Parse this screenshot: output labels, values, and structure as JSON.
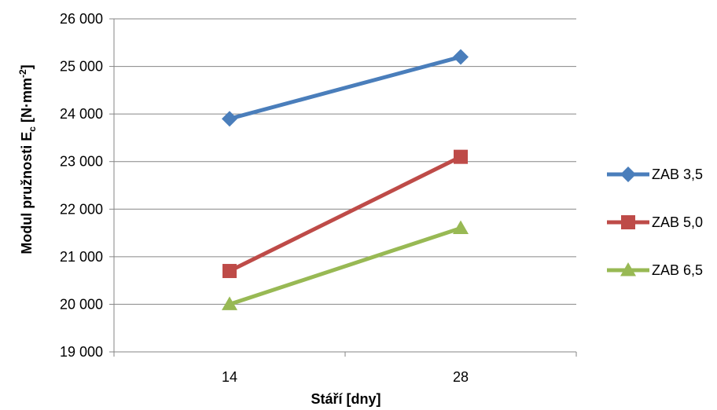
{
  "chart_data": {
    "type": "line",
    "categories": [
      "14",
      "28"
    ],
    "series": [
      {
        "name": "ZAB 3,5",
        "values": [
          23900,
          25200
        ],
        "color": "#4a7ebb",
        "marker": "diamond"
      },
      {
        "name": "ZAB 5,0",
        "values": [
          20700,
          23100
        ],
        "color": "#be4b48",
        "marker": "square"
      },
      {
        "name": "ZAB 6,5",
        "values": [
          20000,
          21600
        ],
        "color": "#98b954",
        "marker": "triangle"
      }
    ],
    "xlabel": "Stáří [dny]",
    "ylabel": {
      "main": "Modul pružnosti E",
      "sub": "c",
      "unit_pre": " [N·mm",
      "sup": "-2",
      "unit_post": "]"
    },
    "ylim": [
      19000,
      26000
    ],
    "yticks": [
      19000,
      20000,
      21000,
      22000,
      23000,
      24000,
      25000,
      26000
    ],
    "ytick_labels": [
      "19 000",
      "20 000",
      "21 000",
      "22 000",
      "23 000",
      "24 000",
      "25 000",
      "26 000"
    ],
    "grid": "horizontal",
    "legend_position": "right"
  }
}
